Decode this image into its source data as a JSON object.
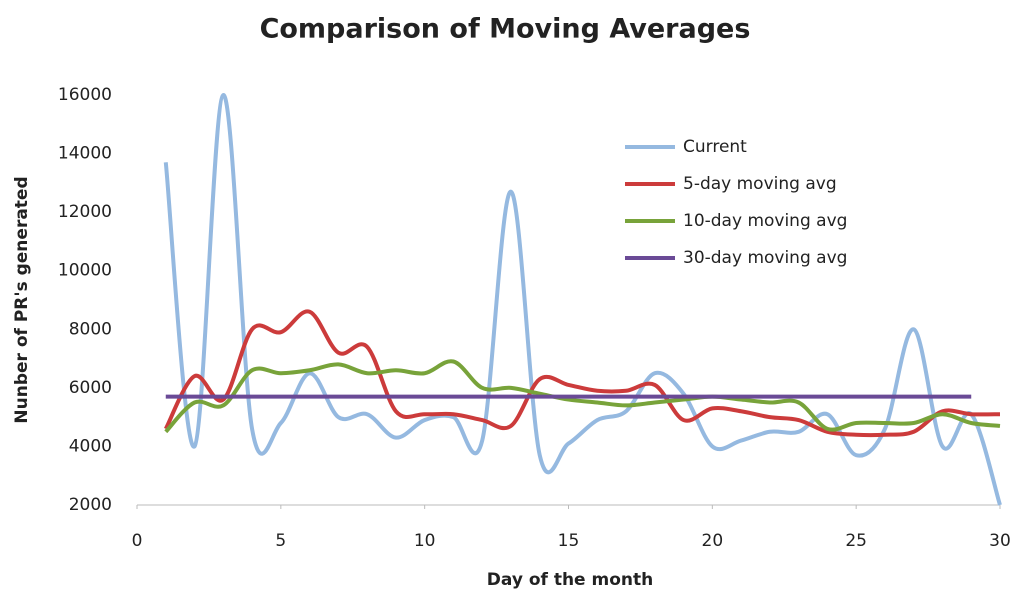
{
  "chart_data": {
    "type": "line",
    "title": "Comparison of Moving Averages",
    "x_label": "Day of the month",
    "y_label": "Nunber of PR's generated",
    "x": [
      1,
      2,
      3,
      4,
      5,
      6,
      7,
      8,
      9,
      10,
      11,
      12,
      13,
      14,
      15,
      16,
      17,
      18,
      19,
      20,
      21,
      22,
      23,
      24,
      25,
      26,
      27,
      28,
      29,
      30
    ],
    "series": [
      {
        "name": "Current",
        "color": "#95b9e0",
        "values": [
          13700,
          4000,
          16000,
          4600,
          4800,
          6500,
          5000,
          5100,
          4300,
          4900,
          5000,
          4200,
          12700,
          3700,
          4100,
          4900,
          5200,
          6500,
          5800,
          4000,
          4200,
          4500,
          4500,
          5100,
          3700,
          4600,
          8000,
          4000,
          5100,
          2000
        ]
      },
      {
        "name": "5-day moving avg",
        "color": "#cc3b3b",
        "values": [
          4600,
          6400,
          5600,
          8000,
          7900,
          8600,
          7200,
          7400,
          5200,
          5100,
          5100,
          4900,
          4700,
          6300,
          6100,
          5900,
          5900,
          6100,
          4900,
          5300,
          5200,
          5000,
          4900,
          4500,
          4400,
          4400,
          4500,
          5200,
          5100,
          5100
        ]
      },
      {
        "name": "10-day moving avg",
        "color": "#78a33a",
        "values": [
          4500,
          5500,
          5400,
          6600,
          6500,
          6600,
          6800,
          6500,
          6600,
          6500,
          6900,
          6000,
          6000,
          5800,
          5600,
          5500,
          5400,
          5500,
          5600,
          5700,
          5600,
          5500,
          5500,
          4600,
          4800,
          4800,
          4800,
          5100,
          4800,
          4700
        ]
      },
      {
        "name": "30-day moving avg",
        "color": "#6a4a96",
        "values": [
          5700,
          5700,
          5700,
          5700,
          5700,
          5700,
          5700,
          5700,
          5700,
          5700,
          5700,
          5700,
          5700,
          5700,
          5700,
          5700,
          5700,
          5700,
          5700,
          5700,
          5700,
          5700,
          5700,
          5700,
          5700,
          5700,
          5700,
          5700,
          5700,
          null
        ]
      }
    ],
    "xlim": [
      0,
      30
    ],
    "xticks": [
      0,
      5,
      10,
      15,
      20,
      25,
      30
    ],
    "ylim": [
      2000,
      16000
    ],
    "yticks": [
      2000,
      4000,
      6000,
      8000,
      10000,
      12000,
      14000,
      16000
    ],
    "legend": "upper right",
    "grid": false
  }
}
